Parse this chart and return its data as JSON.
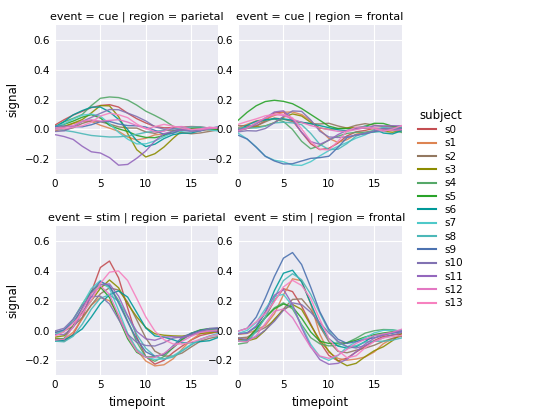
{
  "subjects": [
    "s0",
    "s1",
    "s2",
    "s3",
    "s4",
    "s5",
    "s6",
    "s7",
    "s8",
    "s9",
    "s10",
    "s11",
    "s12",
    "s13"
  ],
  "subject_colors": {
    "s0": "#c44e52",
    "s1": "#dd8452",
    "s2": "#937860",
    "s3": "#8c8c00",
    "s4": "#55a868",
    "s5": "#29a329",
    "s6": "#009999",
    "s7": "#4ec9c9",
    "s8": "#4cb8b8",
    "s9": "#4c72b0",
    "s10": "#8172b2",
    "s11": "#9467bd",
    "s12": "#e377c2",
    "s13": "#f781bf"
  },
  "timepoints": 19,
  "ylim": [
    -0.3,
    0.7
  ],
  "yticks": [
    -0.2,
    0.0,
    0.2,
    0.4,
    0.6
  ],
  "xticks": [
    0,
    5,
    10,
    15
  ],
  "bg_color": "#eaeaf2",
  "grid_color": "white",
  "titles": [
    [
      "event = cue | region = parietal",
      "event = cue | region = frontal"
    ],
    [
      "event = stim | region = parietal",
      "event = stim | region = frontal"
    ]
  ],
  "fig_width": 5.5,
  "fig_height": 4.17
}
